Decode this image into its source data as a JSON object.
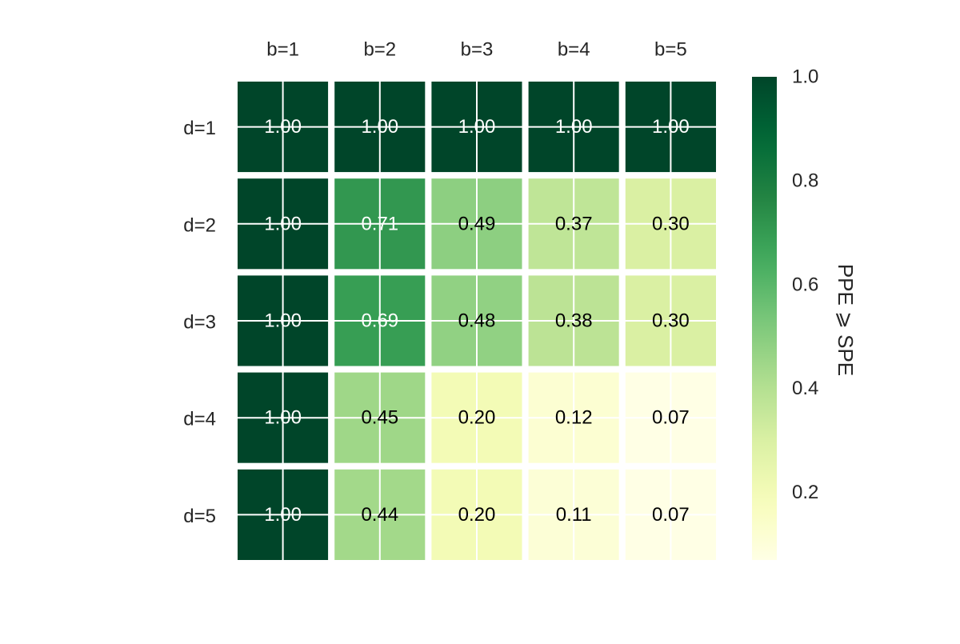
{
  "chart_data": {
    "type": "heatmap",
    "title": "",
    "x_categories": [
      "b=1",
      "b=2",
      "b=3",
      "b=4",
      "b=5"
    ],
    "y_categories": [
      "d=1",
      "d=2",
      "d=3",
      "d=4",
      "d=5"
    ],
    "values": [
      [
        1.0,
        1.0,
        1.0,
        1.0,
        1.0
      ],
      [
        1.0,
        0.71,
        0.49,
        0.37,
        0.3
      ],
      [
        1.0,
        0.69,
        0.48,
        0.38,
        0.3
      ],
      [
        1.0,
        0.45,
        0.2,
        0.12,
        0.07
      ],
      [
        1.0,
        0.44,
        0.2,
        0.11,
        0.07
      ]
    ],
    "cell_labels": [
      [
        "1.00",
        "1.00",
        "1.00",
        "1.00",
        "1.00"
      ],
      [
        "1.00",
        "0.71",
        "0.49",
        "0.37",
        "0.30"
      ],
      [
        "1.00",
        "0.69",
        "0.48",
        "0.38",
        "0.30"
      ],
      [
        "1.00",
        "0.45",
        "0.20",
        "0.12",
        "0.07"
      ],
      [
        "1.00",
        "0.44",
        "0.20",
        "0.11",
        "0.07"
      ]
    ],
    "x_axis_position": "top",
    "colormap": "YlGn",
    "colorbar": {
      "label": "PPE ⩾ SPE",
      "range": [
        0.07,
        1.0
      ],
      "ticks": [
        0.2,
        0.4,
        0.6,
        0.8,
        1.0
      ],
      "tick_labels": [
        "0.2",
        "0.4",
        "0.6",
        "0.8",
        "1.0"
      ]
    },
    "grid": true,
    "colors": {
      "dark_text": "#000000",
      "light_text": "#ffffff",
      "axis_text": "#262626",
      "grid": "#ffffff"
    }
  }
}
